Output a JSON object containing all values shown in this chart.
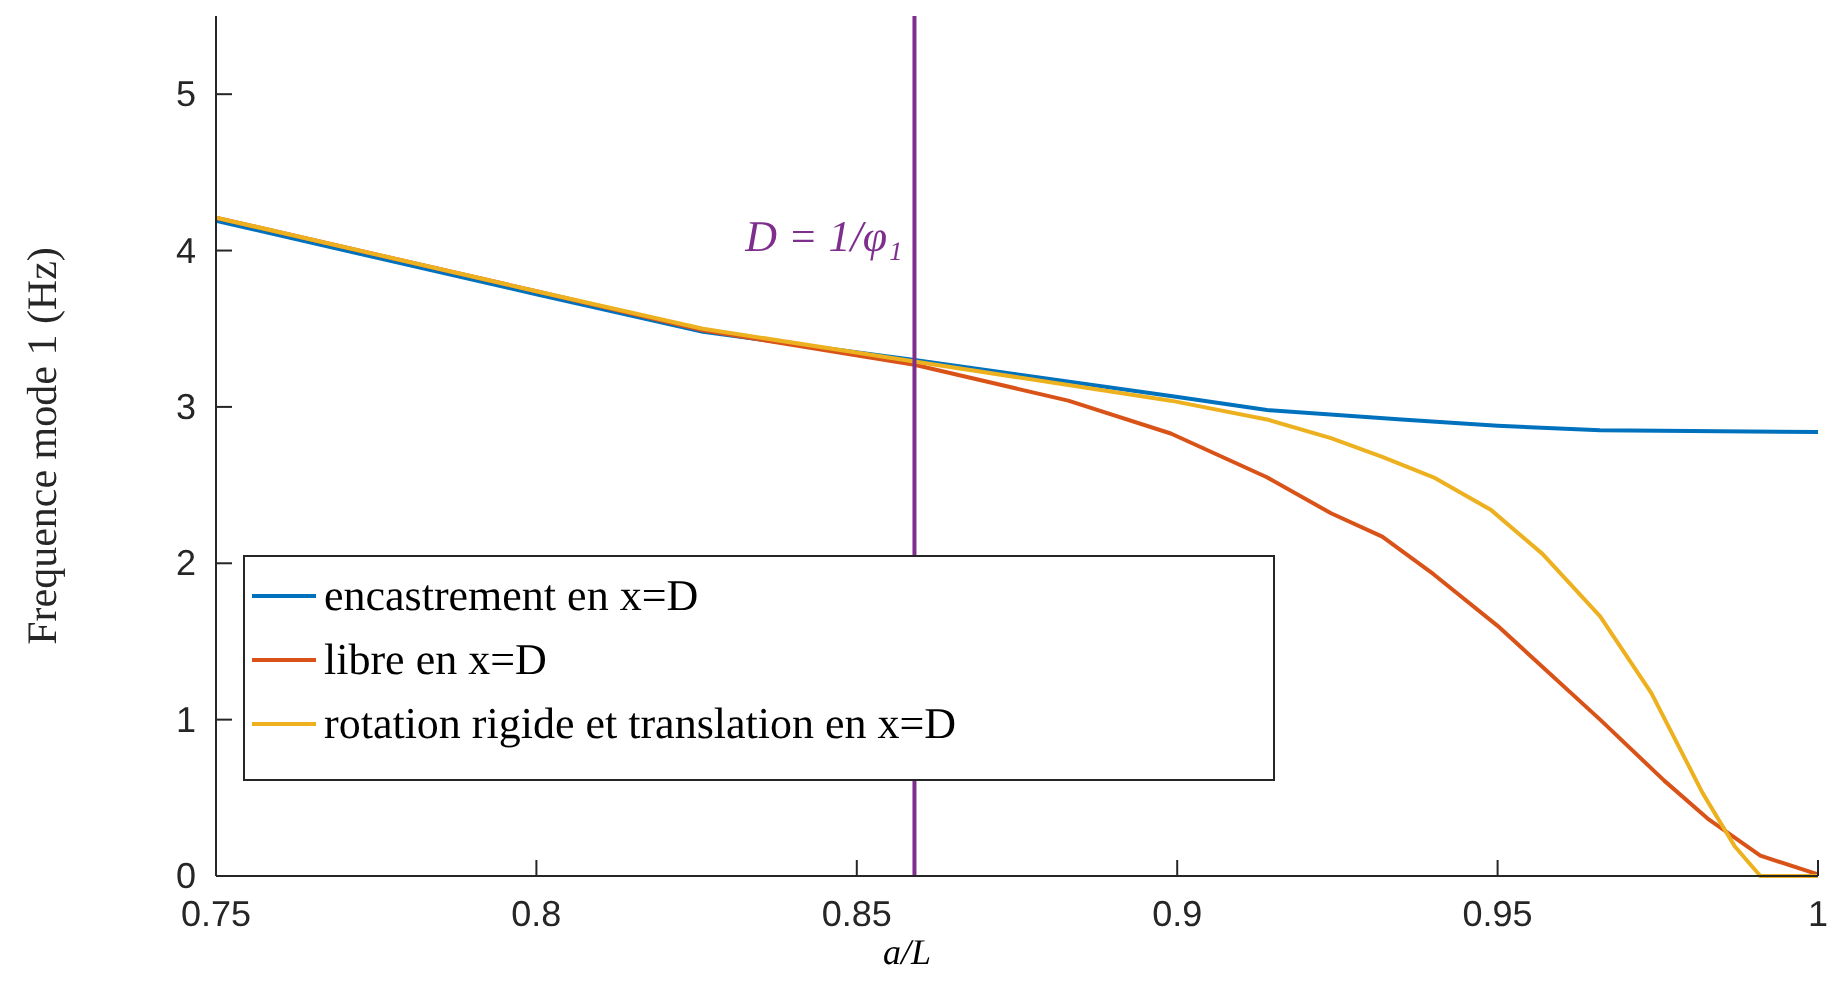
{
  "chart_data": {
    "type": "line",
    "xlabel": "a/L",
    "ylabel": "Frequence mode 1 (Hz)",
    "xlim": [
      0.75,
      1
    ],
    "ylim": [
      0,
      5.5
    ],
    "xticks": [
      0.75,
      0.8,
      0.85,
      0.9,
      0.95,
      1
    ],
    "yticks": [
      0,
      1,
      2,
      3,
      4,
      5
    ],
    "grid": false,
    "legend": "bottom left",
    "line_style": "solid",
    "series": [
      {
        "name": "encastrement en x=D",
        "color": "#0072bd",
        "x": [
          0.75,
          0.8,
          0.826,
          0.859,
          0.899,
          0.914,
          0.935,
          0.95,
          0.966,
          1.0
        ],
        "values": [
          4.19,
          3.72,
          3.48,
          3.3,
          3.07,
          2.98,
          2.92,
          2.88,
          2.85,
          2.84
        ]
      },
      {
        "name": "libre en x=D",
        "color": "#d95319",
        "x": [
          0.75,
          0.8,
          0.826,
          0.859,
          0.883,
          0.899,
          0.914,
          0.924,
          0.932,
          0.94,
          0.95,
          0.966,
          0.976,
          0.983,
          0.991,
          1.0
        ],
        "values": [
          4.21,
          3.74,
          3.49,
          3.27,
          3.04,
          2.83,
          2.55,
          2.32,
          2.17,
          1.93,
          1.6,
          1.0,
          0.61,
          0.36,
          0.13,
          0.01
        ]
      },
      {
        "name": "rotation rigide et translation en x=D",
        "color": "#edb120",
        "x": [
          0.75,
          0.8,
          0.826,
          0.859,
          0.883,
          0.899,
          0.914,
          0.924,
          0.932,
          0.94,
          0.949,
          0.957,
          0.966,
          0.974,
          0.982,
          0.987,
          0.991,
          1.0
        ],
        "values": [
          4.21,
          3.74,
          3.5,
          3.29,
          3.14,
          3.04,
          2.92,
          2.8,
          2.68,
          2.55,
          2.34,
          2.06,
          1.66,
          1.17,
          0.53,
          0.19,
          0,
          0
        ]
      }
    ],
    "ref_lines": [
      {
        "axis": "x",
        "value": 0.859,
        "label": "D = 1/φ₁",
        "color": "#7e2f8e"
      }
    ]
  }
}
